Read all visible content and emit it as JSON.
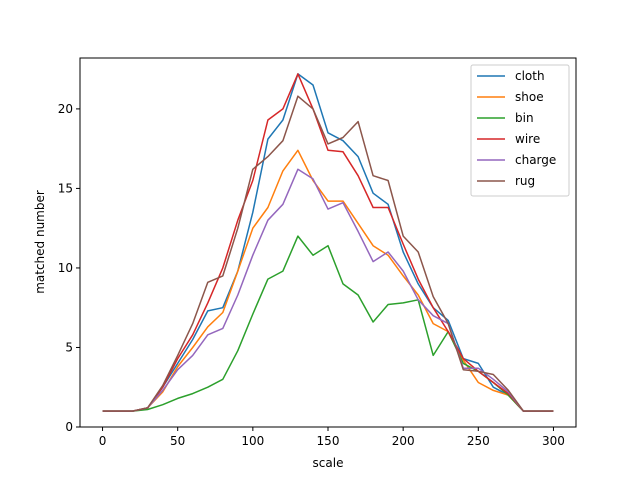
{
  "chart_data": {
    "type": "line",
    "xlabel": "scale",
    "ylabel": "matched number",
    "xlim": [
      -15,
      315
    ],
    "ylim": [
      0,
      23.2
    ],
    "xticks": [
      0,
      50,
      100,
      150,
      200,
      250,
      300
    ],
    "yticks": [
      0,
      5,
      10,
      15,
      20
    ],
    "legend_position": "top-right",
    "grid": false,
    "x": [
      0,
      10,
      20,
      30,
      40,
      50,
      60,
      70,
      80,
      90,
      100,
      110,
      120,
      130,
      140,
      150,
      160,
      170,
      180,
      190,
      200,
      210,
      220,
      230,
      240,
      250,
      260,
      270,
      280,
      290,
      300
    ],
    "series": [
      {
        "name": "cloth",
        "color": "#1f77b4",
        "values": [
          1.0,
          1.0,
          1.0,
          1.2,
          2.5,
          4.0,
          5.5,
          7.3,
          7.5,
          9.8,
          13.5,
          18.1,
          19.3,
          22.2,
          21.5,
          18.5,
          18.0,
          17.0,
          14.7,
          14.0,
          11.0,
          9.0,
          7.5,
          6.7,
          4.3,
          4.0,
          2.5,
          2.0,
          1.0,
          1.0,
          1.0
        ]
      },
      {
        "name": "shoe",
        "color": "#ff7f0e",
        "values": [
          1.0,
          1.0,
          1.0,
          1.2,
          2.2,
          3.8,
          5.0,
          6.3,
          7.2,
          9.8,
          12.5,
          13.8,
          16.1,
          17.4,
          15.5,
          14.2,
          14.2,
          12.8,
          11.4,
          10.8,
          9.5,
          8.3,
          6.5,
          6.0,
          4.2,
          2.8,
          2.3,
          2.0,
          1.0,
          1.0,
          1.0
        ]
      },
      {
        "name": "bin",
        "color": "#2ca02c",
        "values": [
          1.0,
          1.0,
          1.0,
          1.1,
          1.4,
          1.8,
          2.1,
          2.5,
          3.0,
          4.8,
          7.1,
          9.3,
          9.8,
          12.0,
          10.8,
          11.4,
          9.0,
          8.3,
          6.6,
          7.7,
          7.8,
          8.0,
          4.5,
          6.0,
          4.0,
          3.5,
          2.8,
          2.0,
          1.0,
          1.0,
          1.0
        ]
      },
      {
        "name": "wire",
        "color": "#d62728",
        "values": [
          1.0,
          1.0,
          1.0,
          1.2,
          2.5,
          4.3,
          5.8,
          7.8,
          10.0,
          13.0,
          15.5,
          19.3,
          20.0,
          22.2,
          20.0,
          17.4,
          17.3,
          15.8,
          13.8,
          13.8,
          11.5,
          9.3,
          7.5,
          6.0,
          4.3,
          3.5,
          2.8,
          2.1,
          1.0,
          1.0,
          1.0
        ]
      },
      {
        "name": "charge",
        "color": "#9467bd",
        "values": [
          1.0,
          1.0,
          1.0,
          1.2,
          2.3,
          3.6,
          4.5,
          5.8,
          6.2,
          8.3,
          10.8,
          13.0,
          14.0,
          16.2,
          15.6,
          13.7,
          14.1,
          12.3,
          10.4,
          11.0,
          9.8,
          8.0,
          7.0,
          6.5,
          3.7,
          3.7,
          3.0,
          2.2,
          1.0,
          1.0,
          1.0
        ]
      },
      {
        "name": "rug",
        "color": "#8c564b",
        "values": [
          1.0,
          1.0,
          1.0,
          1.2,
          2.6,
          4.5,
          6.5,
          9.1,
          9.5,
          12.5,
          16.2,
          17.0,
          18.0,
          20.8,
          20.0,
          17.8,
          18.2,
          19.2,
          15.8,
          15.5,
          12.0,
          11.0,
          8.2,
          6.5,
          3.6,
          3.5,
          3.3,
          2.3,
          1.0,
          1.0,
          1.0
        ]
      }
    ]
  }
}
